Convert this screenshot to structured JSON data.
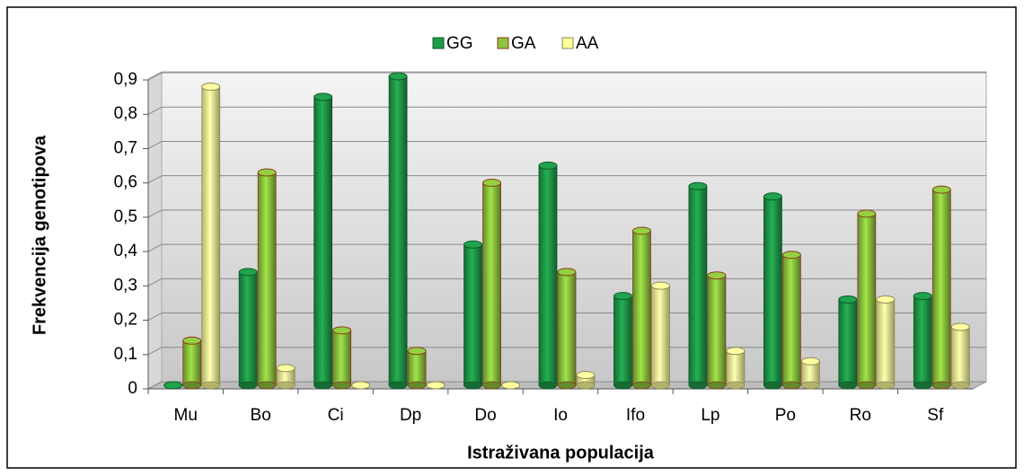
{
  "chart_data": {
    "type": "bar",
    "y_label": "Frekvencija genotipova",
    "x_label": "Istraživana populacija",
    "categories": [
      "Mu",
      "Bo",
      "Ci",
      "Dp",
      "Do",
      "Io",
      "Ifo",
      "Lp",
      "Po",
      "Ro",
      "Sf"
    ],
    "series": [
      {
        "name": "GG",
        "color": "#1f9a48",
        "values": [
          0,
          0.33,
          0.84,
          0.9,
          0.41,
          0.64,
          0.26,
          0.58,
          0.55,
          0.25,
          0.26
        ]
      },
      {
        "name": "GA",
        "color": "#8dc63f",
        "values": [
          0.13,
          0.62,
          0.16,
          0.1,
          0.59,
          0.33,
          0.45,
          0.32,
          0.38,
          0.5,
          0.57
        ]
      },
      {
        "name": "AA",
        "color": "#ffff99",
        "values": [
          0.87,
          0.05,
          0,
          0,
          0,
          0.03,
          0.29,
          0.1,
          0.07,
          0.25,
          0.17
        ]
      }
    ],
    "ylim": [
      0,
      0.9
    ],
    "yticks": [
      0,
      {
        "value": 0.1,
        "label": "0,1"
      },
      {
        "value": 0.2,
        "label": "0,2"
      },
      {
        "value": 0.3,
        "label": "0,3"
      },
      {
        "value": 0.4,
        "label": "0,4"
      },
      {
        "value": 0.5,
        "label": "0,5"
      },
      {
        "value": 0.6,
        "label": "0,6"
      },
      {
        "value": 0.7,
        "label": "0,7"
      },
      {
        "value": 0.8,
        "label": "0,8"
      },
      {
        "value": 0.9,
        "label": "0,9"
      }
    ],
    "grid": true,
    "legend": "top"
  }
}
